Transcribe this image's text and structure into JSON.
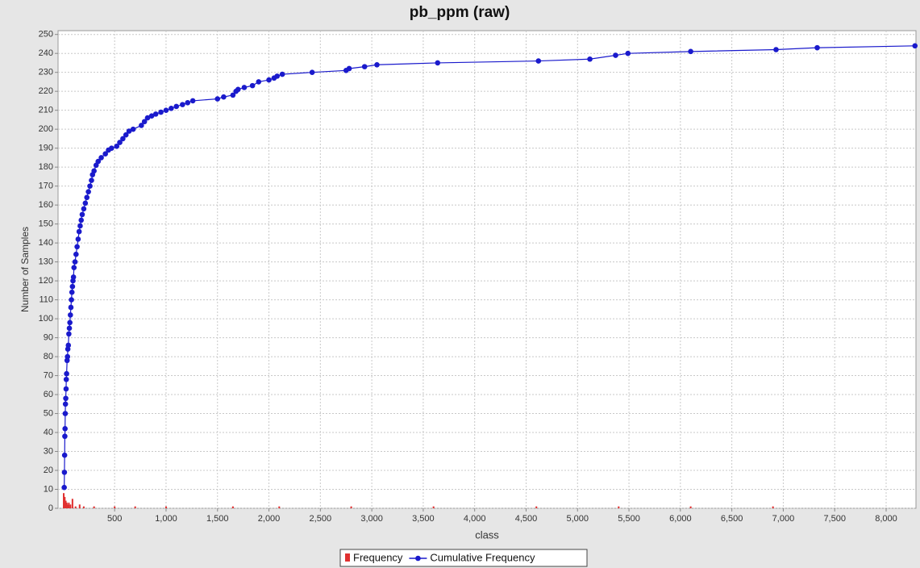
{
  "chart_data": {
    "type": "line",
    "title": "pb_ppm (raw)",
    "x_label": "class",
    "y_label": "Number of Samples",
    "xlim": [
      -50,
      8290
    ],
    "ylim": [
      0,
      252
    ],
    "xticks": [
      500,
      {
        "value": 1000,
        "label": "1,000"
      },
      {
        "value": 1500,
        "label": "1,500"
      },
      {
        "value": 2000,
        "label": "2,000"
      },
      {
        "value": 2500,
        "label": "2,500"
      },
      {
        "value": 3000,
        "label": "3,000"
      },
      {
        "value": 3500,
        "label": "3,500"
      },
      {
        "value": 4000,
        "label": "4,000"
      },
      {
        "value": 4500,
        "label": "4,500"
      },
      {
        "value": 5000,
        "label": "5,000"
      },
      {
        "value": 5500,
        "label": "5,500"
      },
      {
        "value": 6000,
        "label": "6,000"
      },
      {
        "value": 6500,
        "label": "6,500"
      },
      {
        "value": 7000,
        "label": "7,000"
      },
      {
        "value": 7500,
        "label": "7,500"
      },
      {
        "value": 8000,
        "label": "8,000"
      }
    ],
    "yticks": [
      0,
      10,
      20,
      30,
      40,
      50,
      60,
      70,
      80,
      90,
      100,
      110,
      120,
      130,
      140,
      150,
      160,
      170,
      180,
      190,
      200,
      210,
      220,
      230,
      240,
      250
    ],
    "grid": true,
    "series": [
      {
        "name": "Frequency",
        "color": "#e03030",
        "kind": "bar",
        "x": [
          5,
          15,
          25,
          35,
          45,
          55,
          70,
          90,
          120,
          160,
          200,
          300,
          500,
          700,
          1000,
          1650,
          2100,
          2800,
          3600,
          4600,
          5400,
          6100,
          6900
        ],
        "values": [
          8,
          6,
          4,
          3,
          2,
          3,
          2,
          5,
          1,
          2,
          1,
          1,
          1,
          1,
          1,
          1,
          1,
          1,
          1,
          1,
          1,
          1,
          1
        ]
      },
      {
        "name": "Cumulative Frequency",
        "color": "#1a1acc",
        "kind": "line",
        "x": [
          10,
          12,
          14,
          16,
          18,
          20,
          22,
          25,
          28,
          30,
          33,
          38,
          42,
          45,
          50,
          55,
          60,
          65,
          70,
          75,
          80,
          85,
          90,
          95,
          100,
          105,
          115,
          125,
          135,
          145,
          155,
          165,
          175,
          185,
          200,
          215,
          230,
          245,
          260,
          275,
          285,
          300,
          320,
          340,
          370,
          410,
          440,
          470,
          520,
          550,
          580,
          610,
          640,
          680,
          760,
          790,
          820,
          860,
          900,
          950,
          1000,
          1050,
          1100,
          1160,
          1210,
          1260,
          1500,
          1560,
          1650,
          1680,
          1700,
          1760,
          1840,
          1900,
          2000,
          2050,
          2080,
          2130,
          2420,
          2750,
          2780,
          2930,
          3050,
          3640,
          4620,
          5120,
          5370,
          5490,
          6100,
          6930,
          7330,
          8280
        ],
        "values": [
          11,
          19,
          28,
          38,
          42,
          50,
          55,
          58,
          63,
          68,
          71,
          78,
          80,
          84,
          86,
          92,
          95,
          98,
          102,
          106,
          110,
          114,
          117,
          120,
          122,
          127,
          130,
          134,
          138,
          142,
          146,
          149,
          152,
          155,
          158,
          161,
          164,
          167,
          170,
          173,
          176,
          178,
          181,
          183,
          185,
          187,
          189,
          190,
          191,
          193,
          195,
          197,
          199,
          200,
          202,
          204,
          206,
          207,
          208,
          209,
          210,
          211,
          212,
          213,
          214,
          215,
          216,
          217,
          218,
          220,
          221,
          222,
          223,
          225,
          226,
          227,
          228,
          229,
          230,
          231,
          232,
          233,
          234,
          235,
          236,
          237,
          239,
          240,
          241,
          242,
          243,
          244
        ]
      }
    ]
  }
}
